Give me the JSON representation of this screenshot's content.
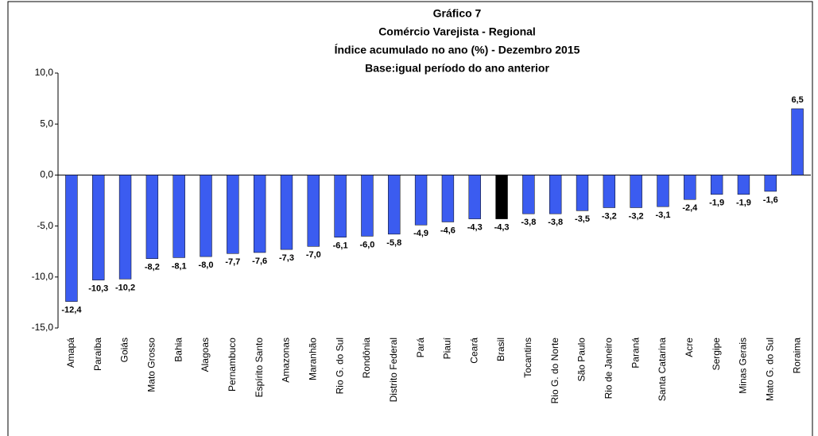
{
  "chart_data": {
    "type": "bar",
    "title": [
      "Gráfico 7",
      "Comércio Varejista - Regional",
      "Índice acumulado no ano (%) - Dezembro 2015",
      "Base:igual período do ano anterior"
    ],
    "categories": [
      "Amapá",
      "Paraíba",
      "Goiás",
      "Mato Grosso",
      "Bahia",
      "Alagoas",
      "Pernambuco",
      "Espírito Santo",
      "Amazonas",
      "Maranhão",
      "Rio G. do Sul",
      "Rondônia",
      "Distrito Federal",
      "Pará",
      "Piauí",
      "Ceará",
      "Brasil",
      "Tocantins",
      "Rio G. do Norte",
      "São Paulo",
      "Rio de Janeiro",
      "Paraná",
      "Santa Catarina",
      "Acre",
      "Sergipe",
      "Minas Gerais",
      "Mato G. do Sul",
      "Roraima"
    ],
    "values": [
      -12.4,
      -10.3,
      -10.2,
      -8.2,
      -8.1,
      -8.0,
      -7.7,
      -7.6,
      -7.3,
      -7.0,
      -6.1,
      -6.0,
      -5.8,
      -4.9,
      -4.6,
      -4.3,
      -4.3,
      -3.8,
      -3.8,
      -3.5,
      -3.2,
      -3.2,
      -3.1,
      -2.4,
      -1.9,
      -1.9,
      -1.6,
      6.5
    ],
    "value_labels": [
      "-12,4",
      "-10,3",
      "-10,2",
      "-8,2",
      "-8,1",
      "-8,0",
      "-7,7",
      "-7,6",
      "-7,3",
      "-7,0",
      "-6,1",
      "-6,0",
      "-5,8",
      "-4,9",
      "-4,6",
      "-4,3",
      "-4,3",
      "-3,8",
      "-3,8",
      "-3,5",
      "-3,2",
      "-3,2",
      "-3,1",
      "-2,4",
      "-1,9",
      "-1,9",
      "-1,6",
      "6,5"
    ],
    "colors": [
      "#3b5cf0",
      "#3b5cf0",
      "#3b5cf0",
      "#3b5cf0",
      "#3b5cf0",
      "#3b5cf0",
      "#3b5cf0",
      "#3b5cf0",
      "#3b5cf0",
      "#3b5cf0",
      "#3b5cf0",
      "#3b5cf0",
      "#3b5cf0",
      "#3b5cf0",
      "#3b5cf0",
      "#3b5cf0",
      "#000000",
      "#3b5cf0",
      "#3b5cf0",
      "#3b5cf0",
      "#3b5cf0",
      "#3b5cf0",
      "#3b5cf0",
      "#3b5cf0",
      "#3b5cf0",
      "#3b5cf0",
      "#3b5cf0",
      "#3b5cf0"
    ],
    "ylim": [
      -15,
      10
    ],
    "yticks": [
      {
        "value": -15,
        "label": "-15,0"
      },
      {
        "value": -10,
        "label": "-10,0"
      },
      {
        "value": -5,
        "label": "-5,0"
      },
      {
        "value": 0,
        "label": "0,0"
      },
      {
        "value": 5,
        "label": "5,0"
      },
      {
        "value": 10,
        "label": "10,0"
      }
    ],
    "grid": false
  }
}
